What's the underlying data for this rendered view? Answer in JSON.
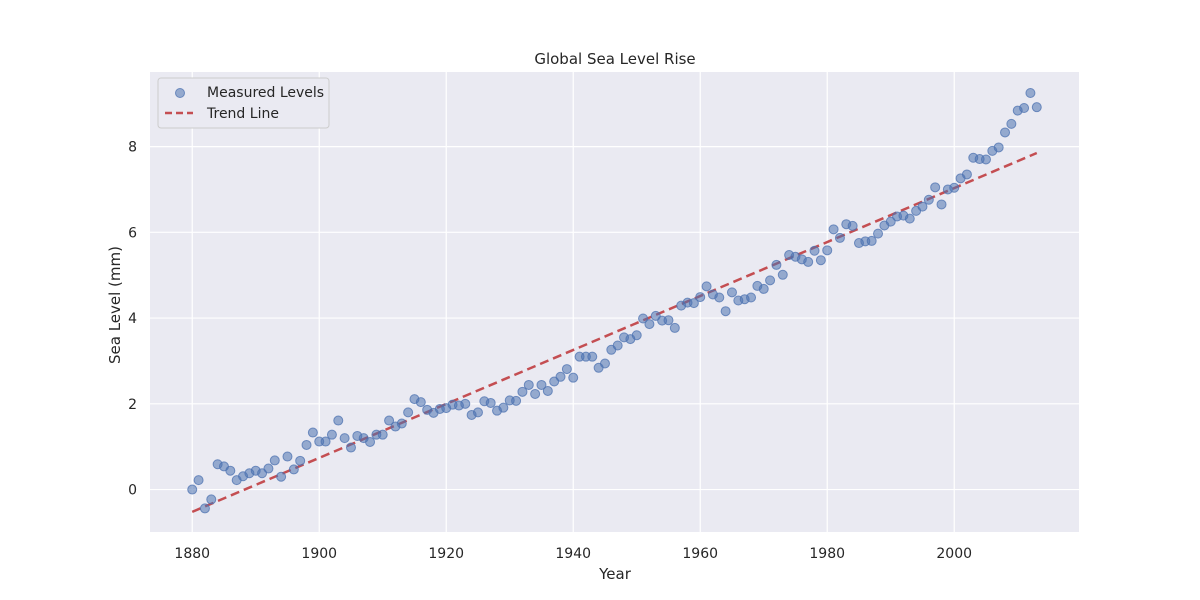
{
  "chart_data": {
    "type": "scatter",
    "title": "Global Sea Level Rise",
    "xlabel": "Year",
    "ylabel": "Sea Level (mm)",
    "xlim": [
      1873.35,
      2019.65
    ],
    "ylim": [
      -0.99,
      9.74
    ],
    "x_ticks": [
      1880,
      1900,
      1920,
      1940,
      1960,
      1980,
      2000
    ],
    "y_ticks": [
      0,
      2,
      4,
      6,
      8
    ],
    "grid": true,
    "legend_position": "top-left",
    "colors": {
      "background": "#eaeaf2",
      "grid": "#ffffff",
      "points": "#4c72b0",
      "trend": "#c44e52"
    },
    "series": [
      {
        "name": "Measured Levels",
        "kind": "scatter",
        "x": [
          1880,
          1881,
          1882,
          1883,
          1884,
          1885,
          1886,
          1887,
          1888,
          1889,
          1890,
          1891,
          1892,
          1893,
          1894,
          1895,
          1896,
          1897,
          1898,
          1899,
          1900,
          1901,
          1902,
          1903,
          1904,
          1905,
          1906,
          1907,
          1908,
          1909,
          1910,
          1911,
          1912,
          1913,
          1914,
          1915,
          1916,
          1917,
          1918,
          1919,
          1920,
          1921,
          1922,
          1923,
          1924,
          1925,
          1926,
          1927,
          1928,
          1929,
          1930,
          1931,
          1932,
          1933,
          1934,
          1935,
          1936,
          1937,
          1938,
          1939,
          1940,
          1941,
          1942,
          1943,
          1944,
          1945,
          1946,
          1947,
          1948,
          1949,
          1950,
          1951,
          1952,
          1953,
          1954,
          1955,
          1956,
          1957,
          1958,
          1959,
          1960,
          1961,
          1962,
          1963,
          1964,
          1965,
          1966,
          1967,
          1968,
          1969,
          1970,
          1971,
          1972,
          1973,
          1974,
          1975,
          1976,
          1977,
          1978,
          1979,
          1980,
          1981,
          1982,
          1983,
          1984,
          1985,
          1986,
          1987,
          1988,
          1989,
          1990,
          1991,
          1992,
          1993,
          1994,
          1995,
          1996,
          1997,
          1998,
          1999,
          2000,
          2001,
          2002,
          2003,
          2004,
          2005,
          2006,
          2007,
          2008,
          2009,
          2010,
          2011,
          2012,
          2013
        ],
        "y": [
          0.0,
          0.22,
          -0.44,
          -0.23,
          0.59,
          0.54,
          0.44,
          0.22,
          0.31,
          0.38,
          0.44,
          0.38,
          0.49,
          0.68,
          0.3,
          0.77,
          0.47,
          0.67,
          1.04,
          1.33,
          1.12,
          1.12,
          1.28,
          1.61,
          1.2,
          0.98,
          1.25,
          1.2,
          1.11,
          1.28,
          1.28,
          1.61,
          1.47,
          1.54,
          1.8,
          2.11,
          2.04,
          1.86,
          1.79,
          1.88,
          1.9,
          1.98,
          1.96,
          2.0,
          1.74,
          1.8,
          2.06,
          2.02,
          1.84,
          1.91,
          2.08,
          2.07,
          2.28,
          2.44,
          2.23,
          2.44,
          2.3,
          2.52,
          2.63,
          2.81,
          2.61,
          3.1,
          3.1,
          3.1,
          2.84,
          2.94,
          3.26,
          3.36,
          3.55,
          3.51,
          3.6,
          3.99,
          3.86,
          4.05,
          3.94,
          3.95,
          3.77,
          4.29,
          4.36,
          4.35,
          4.49,
          4.74,
          4.55,
          4.48,
          4.16,
          4.6,
          4.41,
          4.44,
          4.48,
          4.75,
          4.68,
          4.88,
          5.24,
          5.01,
          5.47,
          5.43,
          5.37,
          5.31,
          5.57,
          5.35,
          5.58,
          6.07,
          5.87,
          6.19,
          6.15,
          5.75,
          5.79,
          5.8,
          5.97,
          6.16,
          6.25,
          6.37,
          6.39,
          6.32,
          6.5,
          6.6,
          6.76,
          7.05,
          6.65,
          7.0,
          7.04,
          7.26,
          7.35,
          7.74,
          7.71,
          7.7,
          7.9,
          7.98,
          8.33,
          8.53,
          8.84,
          8.9,
          9.25,
          8.92
        ]
      },
      {
        "name": "Trend Line",
        "kind": "line",
        "x": [
          1880,
          2013
        ],
        "y": [
          -0.52,
          7.85
        ]
      }
    ]
  }
}
